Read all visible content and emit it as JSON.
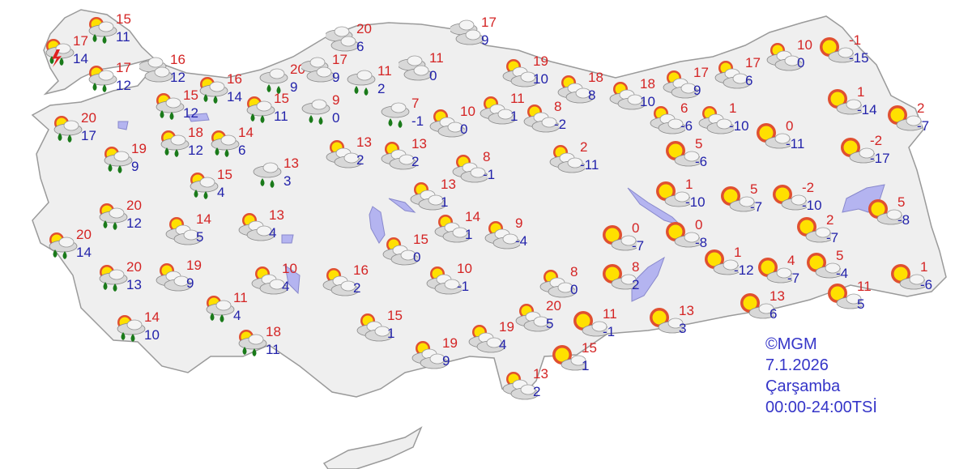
{
  "legend": {
    "source": "©MGM",
    "date": "7.1.2026",
    "day": "Çarşamba",
    "period": "00:00-24:00TSİ"
  },
  "colors": {
    "high": "#d42424",
    "low": "#2222aa",
    "land": "#efefef",
    "water": "#b4b4f0"
  },
  "icon_types": {
    "thunder": "thunderstorm-icon",
    "rain_partly": "partly-cloudy-rain-icon",
    "rain": "cloud-rain-icon",
    "cloudy": "cloudy-icon",
    "partly": "partly-cloudy-icon",
    "sunny": "mostly-sunny-icon"
  },
  "forecasts": [
    {
      "icon": "rain_partly",
      "high": "15",
      "low": "11"
    },
    {
      "icon": "thunder",
      "high": "17",
      "low": "14"
    },
    {
      "icon": "rain_partly",
      "high": "17",
      "low": "12"
    },
    {
      "icon": "cloudy",
      "high": "16",
      "low": "12"
    },
    {
      "icon": "rain_partly",
      "high": "16",
      "low": "14"
    },
    {
      "icon": "rain",
      "high": "20",
      "low": "9"
    },
    {
      "icon": "cloudy",
      "high": "20",
      "low": "6"
    },
    {
      "icon": "cloudy",
      "high": "17",
      "low": "9"
    },
    {
      "icon": "rain",
      "high": "11",
      "low": "2"
    },
    {
      "icon": "cloudy",
      "high": "17",
      "low": "9"
    },
    {
      "icon": "cloudy",
      "high": "11",
      "low": "0"
    },
    {
      "icon": "rain_partly",
      "high": "15",
      "low": "12"
    },
    {
      "icon": "rain_partly",
      "high": "15",
      "low": "11"
    },
    {
      "icon": "rain",
      "high": "9",
      "low": "0"
    },
    {
      "icon": "rain",
      "high": "7",
      "low": "-1"
    },
    {
      "icon": "partly",
      "high": "10",
      "low": "0"
    },
    {
      "icon": "partly",
      "high": "19",
      "low": "10"
    },
    {
      "icon": "partly",
      "high": "18",
      "low": "8"
    },
    {
      "icon": "partly",
      "high": "18",
      "low": "10"
    },
    {
      "icon": "partly",
      "high": "17",
      "low": "9"
    },
    {
      "icon": "partly",
      "high": "17",
      "low": "6"
    },
    {
      "icon": "partly",
      "high": "10",
      "low": "0"
    },
    {
      "icon": "sunny",
      "high": "-1",
      "low": "-15"
    },
    {
      "icon": "partly",
      "high": "11",
      "low": "1"
    },
    {
      "icon": "partly",
      "high": "8",
      "low": "-2"
    },
    {
      "icon": "rain_partly",
      "high": "20",
      "low": "17"
    },
    {
      "icon": "rain_partly",
      "high": "18",
      "low": "12"
    },
    {
      "icon": "rain_partly",
      "high": "14",
      "low": "6"
    },
    {
      "icon": "rain_partly",
      "high": "19",
      "low": "9"
    },
    {
      "icon": "partly",
      "high": "13",
      "low": "2"
    },
    {
      "icon": "partly",
      "high": "13",
      "low": "2"
    },
    {
      "icon": "partly",
      "high": "8",
      "low": "-1"
    },
    {
      "icon": "partly",
      "high": "2",
      "low": "-11"
    },
    {
      "icon": "partly",
      "high": "6",
      "low": "-6"
    },
    {
      "icon": "partly",
      "high": "1",
      "low": "-10"
    },
    {
      "icon": "sunny",
      "high": "0",
      "low": "-11"
    },
    {
      "icon": "sunny",
      "high": "1",
      "low": "-14"
    },
    {
      "icon": "sunny",
      "high": "2",
      "low": "-7"
    },
    {
      "icon": "sunny",
      "high": "-2",
      "low": "-17"
    },
    {
      "icon": "sunny",
      "high": "5",
      "low": "-6"
    },
    {
      "icon": "rain_partly",
      "high": "15",
      "low": "4"
    },
    {
      "icon": "rain",
      "high": "13",
      "low": "3"
    },
    {
      "icon": "partly",
      "high": "13",
      "low": "1"
    },
    {
      "icon": "rain_partly",
      "high": "20",
      "low": "12"
    },
    {
      "icon": "partly",
      "high": "14",
      "low": "5"
    },
    {
      "icon": "partly",
      "high": "13",
      "low": "4"
    },
    {
      "icon": "rain_partly",
      "high": "20",
      "low": "14"
    },
    {
      "icon": "partly",
      "high": "14",
      "low": "1"
    },
    {
      "icon": "partly",
      "high": "9",
      "low": "-4"
    },
    {
      "icon": "sunny",
      "high": "1",
      "low": "-10"
    },
    {
      "icon": "sunny",
      "high": "5",
      "low": "-7"
    },
    {
      "icon": "sunny",
      "high": "-2",
      "low": "-10"
    },
    {
      "icon": "sunny",
      "high": "5",
      "low": "-8"
    },
    {
      "icon": "sunny",
      "high": "0",
      "low": "-7"
    },
    {
      "icon": "sunny",
      "high": "0",
      "low": "-8"
    },
    {
      "icon": "sunny",
      "high": "2",
      "low": "-7"
    },
    {
      "icon": "partly",
      "high": "15",
      "low": "0"
    },
    {
      "icon": "rain_partly",
      "high": "20",
      "low": "13"
    },
    {
      "icon": "partly",
      "high": "19",
      "low": "9"
    },
    {
      "icon": "partly",
      "high": "10",
      "low": "4"
    },
    {
      "icon": "partly",
      "high": "16",
      "low": "2"
    },
    {
      "icon": "partly",
      "high": "10",
      "low": "-1"
    },
    {
      "icon": "partly",
      "high": "8",
      "low": "0"
    },
    {
      "icon": "sunny",
      "high": "8",
      "low": "2"
    },
    {
      "icon": "sunny",
      "high": "1",
      "low": "-12"
    },
    {
      "icon": "sunny",
      "high": "4",
      "low": "-7"
    },
    {
      "icon": "sunny",
      "high": "5",
      "low": "-4"
    },
    {
      "icon": "sunny",
      "high": "1",
      "low": "-6"
    },
    {
      "icon": "rain_partly",
      "high": "11",
      "low": "4"
    },
    {
      "icon": "partly",
      "high": "20",
      "low": "5"
    },
    {
      "icon": "sunny",
      "high": "11",
      "low": "-1"
    },
    {
      "icon": "sunny",
      "high": "13",
      "low": "3"
    },
    {
      "icon": "sunny",
      "high": "13",
      "low": "6"
    },
    {
      "icon": "sunny",
      "high": "11",
      "low": "5"
    },
    {
      "icon": "rain_partly",
      "high": "14",
      "low": "10"
    },
    {
      "icon": "rain_partly",
      "high": "18",
      "low": "11"
    },
    {
      "icon": "partly",
      "high": "15",
      "low": "1"
    },
    {
      "icon": "sunny",
      "high": "15",
      "low": "1"
    },
    {
      "icon": "partly",
      "high": "19",
      "low": "4"
    },
    {
      "icon": "partly",
      "high": "19",
      "low": "9"
    },
    {
      "icon": "partly",
      "high": "13",
      "low": "2"
    }
  ]
}
